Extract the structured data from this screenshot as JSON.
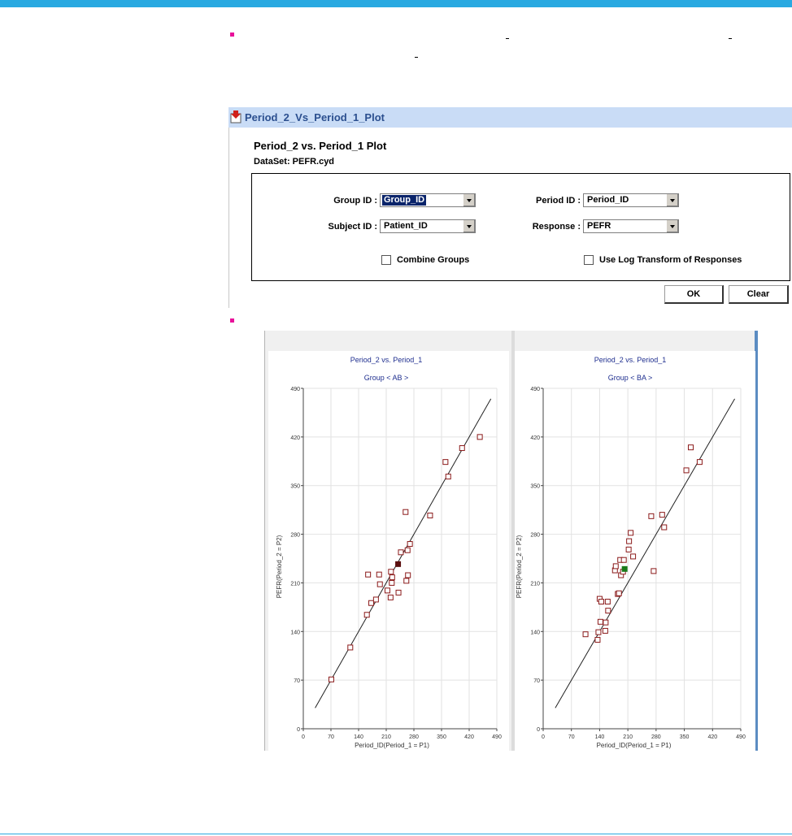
{
  "dialog": {
    "title": "Period_2_Vs_Period_1_Plot",
    "heading": "Period_2 vs. Period_1 Plot",
    "dataset": "DataSet: PEFR.cyd",
    "fields": {
      "group_id": {
        "label": "Group ID :",
        "value": "Group_ID"
      },
      "period_id": {
        "label": "Period ID :",
        "value": "Period_ID"
      },
      "subject_id": {
        "label": "Subject ID :",
        "value": "Patient_ID"
      },
      "response": {
        "label": "Response :",
        "value": "PEFR"
      }
    },
    "checkboxes": {
      "combine_groups": {
        "label": "Combine Groups",
        "checked": false
      },
      "log_transform": {
        "label": "Use Log Transform of Responses",
        "checked": false
      }
    },
    "buttons": {
      "ok": "OK",
      "clear": "Clear"
    }
  },
  "colors": {
    "accent_bar": "#29a9e1",
    "bullet": "#e8119a",
    "titlebar_bg": "#c9dcf6",
    "titlebar_text": "#2b4f8f",
    "plot_title": "#1f2f8f",
    "marker": "#8b1a1a",
    "highlight_dark": "#5a0f0f",
    "highlight_green": "#1a7a1a"
  },
  "chart_data": [
    {
      "type": "scatter",
      "title": "Period_2 vs. Period_1",
      "subtitle": "Group < AB >",
      "xlabel": "Period_ID(Period_1 = P1)",
      "ylabel": "PEFR(Period_2 = P2)",
      "xlim": [
        0,
        490
      ],
      "ylim": [
        0,
        490
      ],
      "xticks": [
        "0",
        "70",
        "140",
        "210",
        "280",
        "350",
        "420",
        "490"
      ],
      "yticks": [
        "0",
        "70",
        "140",
        "210",
        "280",
        "350",
        "420",
        "490"
      ],
      "grid": true,
      "reference_line": {
        "x": [
          30,
          475
        ],
        "y": [
          30,
          475
        ]
      },
      "points": [
        {
          "x": 71,
          "y": 71
        },
        {
          "x": 119,
          "y": 117
        },
        {
          "x": 161,
          "y": 164
        },
        {
          "x": 164,
          "y": 222
        },
        {
          "x": 172,
          "y": 181
        },
        {
          "x": 184,
          "y": 186
        },
        {
          "x": 192,
          "y": 222
        },
        {
          "x": 194,
          "y": 208
        },
        {
          "x": 213,
          "y": 199
        },
        {
          "x": 221,
          "y": 189
        },
        {
          "x": 222,
          "y": 226
        },
        {
          "x": 224,
          "y": 210
        },
        {
          "x": 225,
          "y": 218
        },
        {
          "x": 241,
          "y": 196
        },
        {
          "x": 247,
          "y": 254
        },
        {
          "x": 259,
          "y": 312
        },
        {
          "x": 261,
          "y": 213
        },
        {
          "x": 264,
          "y": 257
        },
        {
          "x": 265,
          "y": 221
        },
        {
          "x": 270,
          "y": 266
        },
        {
          "x": 321,
          "y": 307
        },
        {
          "x": 360,
          "y": 384
        },
        {
          "x": 367,
          "y": 363
        },
        {
          "x": 402,
          "y": 404
        },
        {
          "x": 447,
          "y": 420
        },
        {
          "x": 240,
          "y": 237,
          "highlight": "dark"
        }
      ]
    },
    {
      "type": "scatter",
      "title": "Period_2 vs. Period_1",
      "subtitle": "Group < BA >",
      "xlabel": "Period_ID(Period_1 = P1)",
      "ylabel": "PEFR(Period_2 = P2)",
      "xlim": [
        0,
        490
      ],
      "ylim": [
        0,
        490
      ],
      "xticks": [
        "0",
        "70",
        "140",
        "210",
        "280",
        "350",
        "420",
        "490"
      ],
      "yticks": [
        "0",
        "70",
        "140",
        "210",
        "280",
        "350",
        "420",
        "490"
      ],
      "grid": true,
      "reference_line": {
        "x": [
          30,
          475
        ],
        "y": [
          30,
          475
        ]
      },
      "points": [
        {
          "x": 105,
          "y": 136
        },
        {
          "x": 135,
          "y": 128
        },
        {
          "x": 137,
          "y": 139
        },
        {
          "x": 140,
          "y": 187
        },
        {
          "x": 142,
          "y": 154
        },
        {
          "x": 144,
          "y": 183
        },
        {
          "x": 154,
          "y": 141
        },
        {
          "x": 155,
          "y": 153
        },
        {
          "x": 160,
          "y": 183
        },
        {
          "x": 161,
          "y": 170
        },
        {
          "x": 178,
          "y": 228
        },
        {
          "x": 180,
          "y": 234
        },
        {
          "x": 185,
          "y": 194
        },
        {
          "x": 188,
          "y": 195
        },
        {
          "x": 191,
          "y": 243
        },
        {
          "x": 193,
          "y": 221
        },
        {
          "x": 198,
          "y": 226
        },
        {
          "x": 200,
          "y": 243
        },
        {
          "x": 212,
          "y": 258
        },
        {
          "x": 213,
          "y": 270
        },
        {
          "x": 217,
          "y": 282
        },
        {
          "x": 223,
          "y": 248
        },
        {
          "x": 268,
          "y": 306
        },
        {
          "x": 274,
          "y": 227
        },
        {
          "x": 295,
          "y": 308
        },
        {
          "x": 300,
          "y": 290
        },
        {
          "x": 355,
          "y": 372
        },
        {
          "x": 366,
          "y": 405
        },
        {
          "x": 388,
          "y": 384
        },
        {
          "x": 202,
          "y": 230,
          "highlight": "green"
        }
      ]
    }
  ]
}
